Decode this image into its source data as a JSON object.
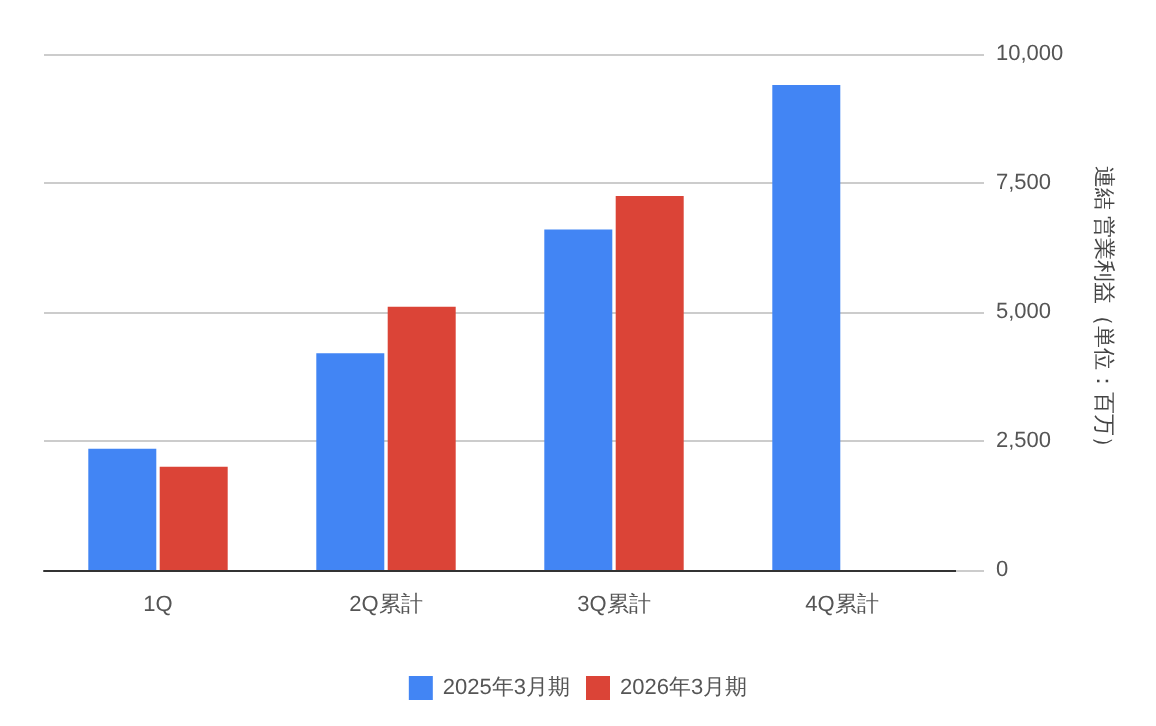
{
  "chart_data": {
    "type": "bar",
    "ylabel": "連結 営業利益（単位：百万）",
    "categories": [
      "1Q",
      "2Q累計",
      "3Q累計",
      "4Q累計"
    ],
    "series": [
      {
        "name": "2025年3月期",
        "color": "#4285f4",
        "values": [
          2350,
          4200,
          6600,
          9400
        ]
      },
      {
        "name": "2026年3月期",
        "color": "#db4437",
        "values": [
          2000,
          5100,
          7250,
          null
        ]
      }
    ],
    "ylim": [
      0,
      10000
    ],
    "yticks": [
      0,
      {
        "value": 2500,
        "label": "2,500"
      },
      {
        "value": 5000,
        "label": "5,000"
      },
      {
        "value": 7500,
        "label": "7,500"
      },
      {
        "value": 10000,
        "label": "10,000"
      }
    ],
    "grid": "y",
    "legend": "bottom"
  }
}
